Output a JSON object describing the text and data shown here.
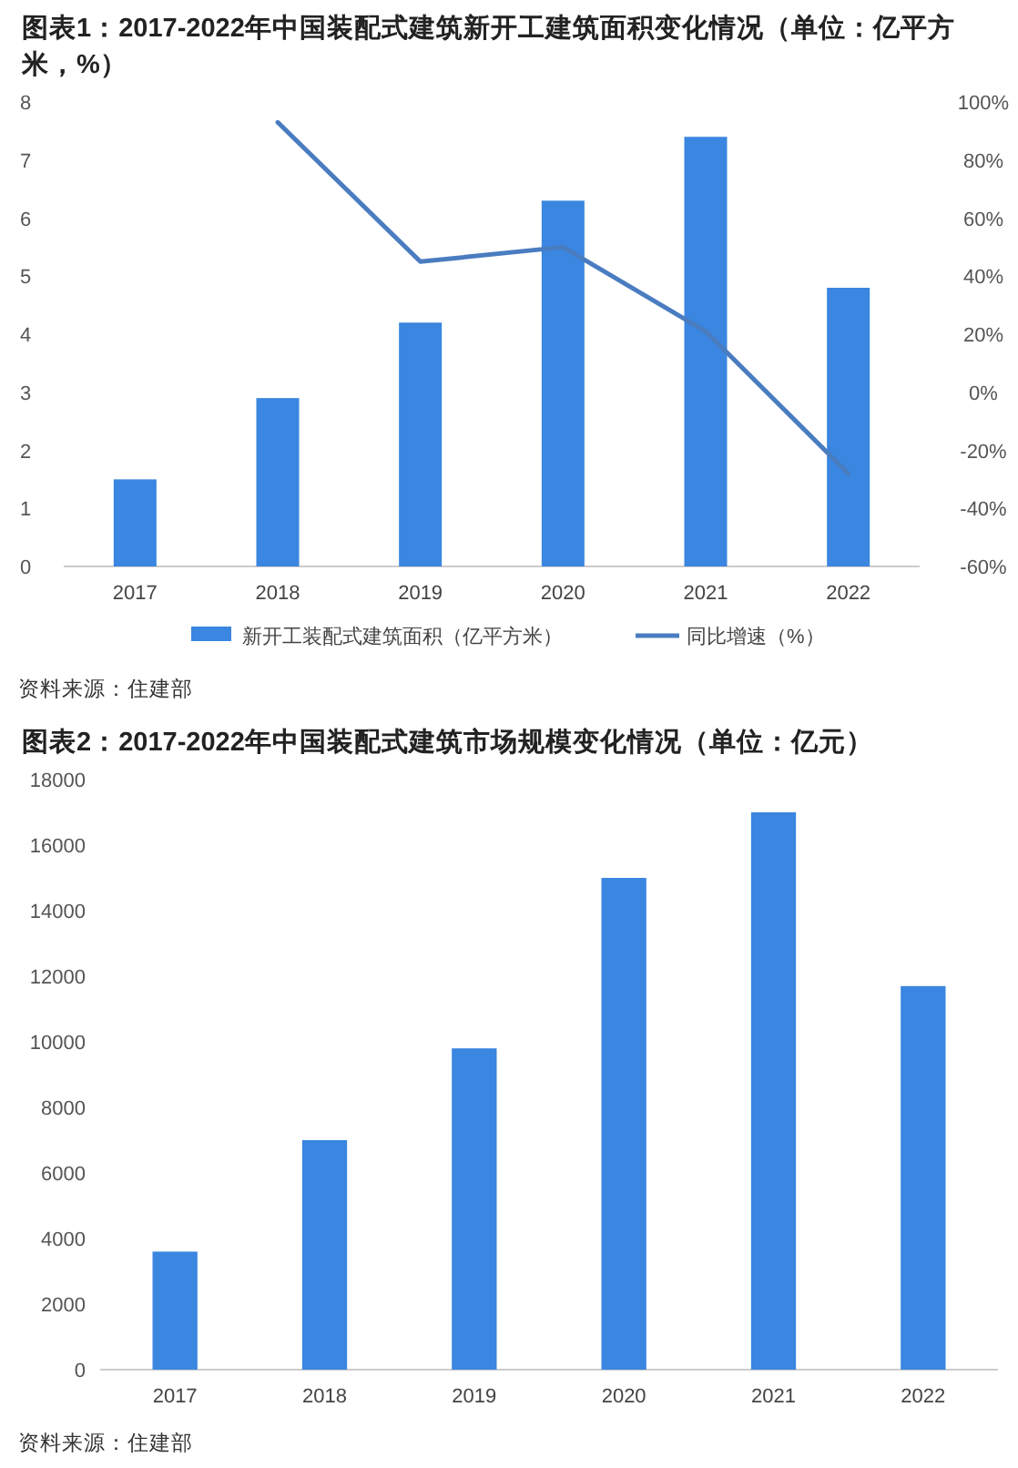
{
  "chart_data": [
    {
      "type": "bar",
      "title": "图表1：2017-2022年中国装配式建筑新开工建筑面积变化情况（单位：亿平方米，%）",
      "categories": [
        "2017",
        "2018",
        "2019",
        "2020",
        "2021",
        "2022"
      ],
      "series": [
        {
          "name": "新开工装配式建筑面积（亿平方米）",
          "color": "#3a86e0",
          "values": [
            1.5,
            2.9,
            4.2,
            6.3,
            7.4,
            4.8
          ]
        },
        {
          "name": "同比增速（%）",
          "type": "line",
          "axis": "y2",
          "color": "#4a7cc0",
          "values": [
            null,
            93,
            45,
            50,
            21,
            -28
          ]
        }
      ],
      "ylim": [
        0,
        8
      ],
      "yticks": [
        0,
        1,
        2,
        3,
        4,
        5,
        6,
        7,
        8
      ],
      "y2lim": [
        -60,
        100
      ],
      "y2ticks": [
        {
          "value": -60,
          "label": "-60%"
        },
        {
          "value": -40,
          "label": "-40%"
        },
        {
          "value": -20,
          "label": "-20%"
        },
        {
          "value": 0,
          "label": "0%"
        },
        {
          "value": 20,
          "label": "20%"
        },
        {
          "value": 40,
          "label": "40%"
        },
        {
          "value": 60,
          "label": "60%"
        },
        {
          "value": 80,
          "label": "80%"
        },
        {
          "value": 100,
          "label": "100%"
        }
      ],
      "legend": "bottom",
      "grid": false,
      "marker": "none",
      "annotations": [
        "资料来源：住建部"
      ]
    },
    {
      "type": "bar",
      "title": "图表2：2017-2022年中国装配式建筑市场规模变化情况（单位：亿元）",
      "categories": [
        "2017",
        "2018",
        "2019",
        "2020",
        "2021",
        "2022"
      ],
      "series": [
        {
          "color": "#3a86e0",
          "values": [
            3600,
            7000,
            9800,
            15000,
            17000,
            11700
          ]
        }
      ],
      "ylim": [
        0,
        18000
      ],
      "yticks": [
        0,
        2000,
        4000,
        6000,
        8000,
        10000,
        12000,
        14000,
        16000,
        18000
      ],
      "legend": false,
      "grid": false,
      "annotations": [
        "资料来源：住建部"
      ]
    }
  ]
}
